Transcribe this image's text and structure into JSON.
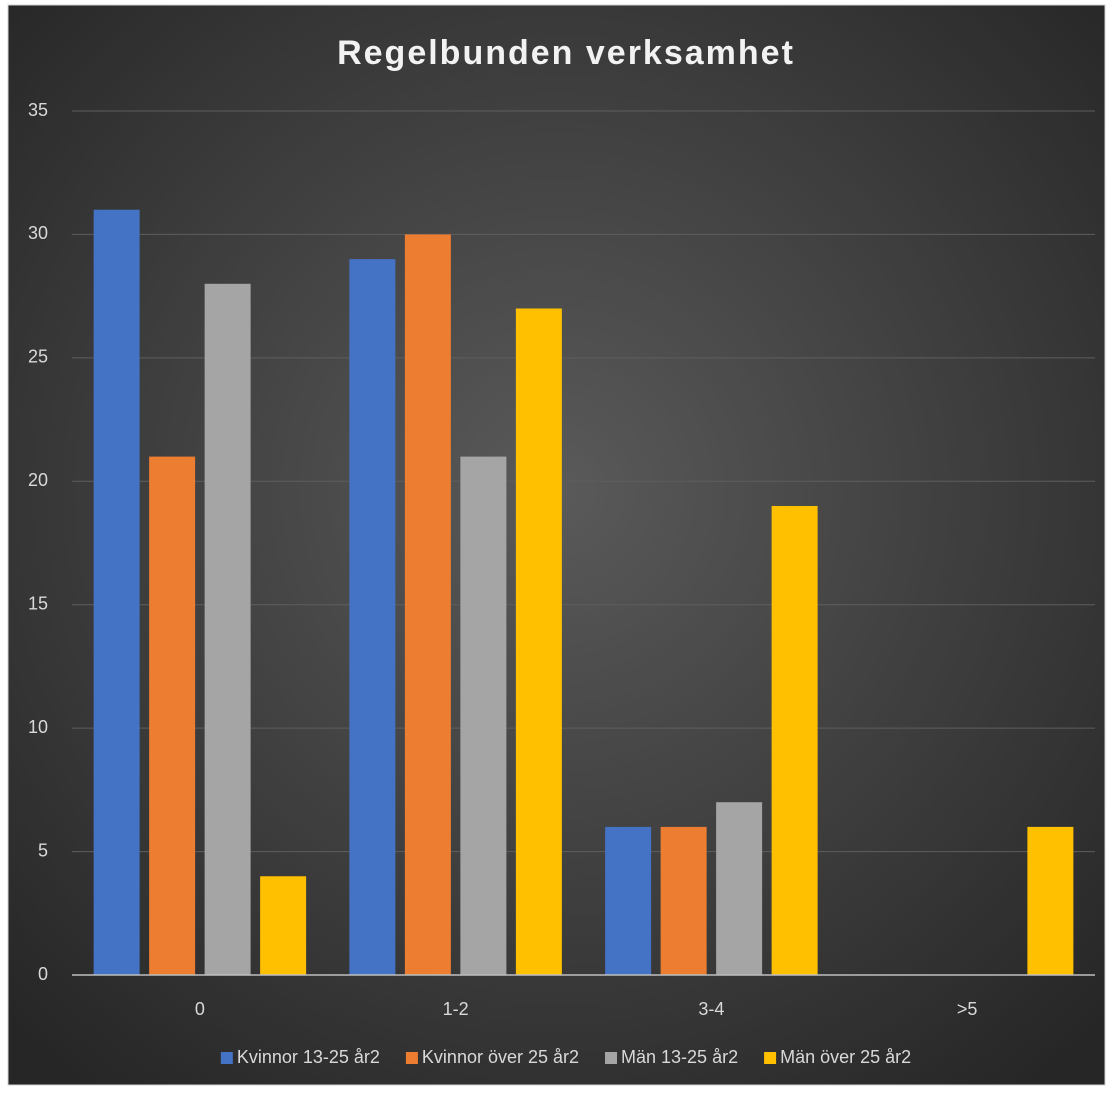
{
  "chart_data": {
    "type": "bar",
    "title": "Regelbunden verksamhet",
    "categories": [
      "0",
      "1-2",
      "3-4",
      ">5"
    ],
    "series": [
      {
        "name": "Kvinnor 13-25 år2",
        "color": "#4472c4",
        "values": [
          31,
          29,
          6,
          0
        ]
      },
      {
        "name": "Kvinnor över 25 år2",
        "color": "#ed7d31",
        "values": [
          21,
          30,
          6,
          0
        ]
      },
      {
        "name": "Män 13-25 år2",
        "color": "#a5a5a5",
        "values": [
          28,
          21,
          7,
          0
        ]
      },
      {
        "name": "Män över 25 år2",
        "color": "#ffc000",
        "values": [
          4,
          27,
          19,
          6
        ]
      }
    ],
    "ylim": [
      0,
      35
    ],
    "yticks": [
      0,
      5,
      10,
      15,
      20,
      25,
      30,
      35
    ],
    "grid": true,
    "legend": "bottom"
  }
}
